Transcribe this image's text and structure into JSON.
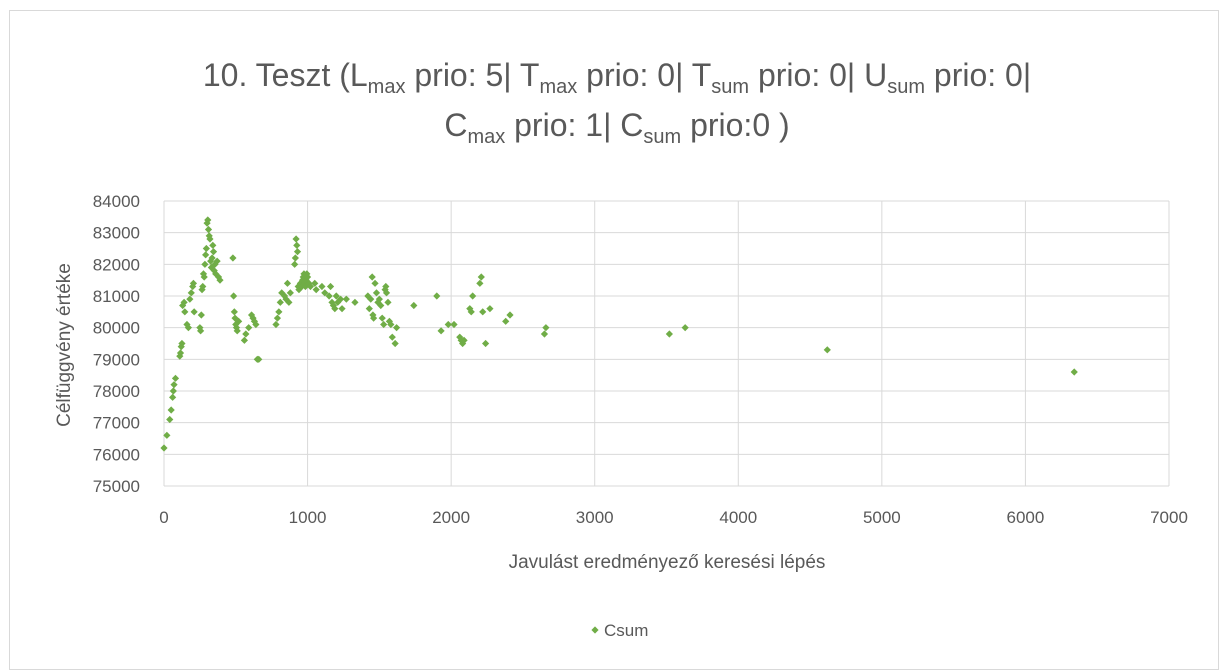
{
  "chart_data": {
    "type": "scatter",
    "title_line1": [
      {
        "t": "10. Teszt (L",
        "sub": false
      },
      {
        "t": "max",
        "sub": true
      },
      {
        "t": " prio: 5| T",
        "sub": false
      },
      {
        "t": "max",
        "sub": true
      },
      {
        "t": " prio: 0| T",
        "sub": false
      },
      {
        "t": "sum",
        "sub": true
      },
      {
        "t": " prio: 0| U",
        "sub": false
      },
      {
        "t": "sum",
        "sub": true
      },
      {
        "t": " prio: 0|",
        "sub": false
      }
    ],
    "title_line2": [
      {
        "t": "C",
        "sub": false
      },
      {
        "t": "max",
        "sub": true
      },
      {
        "t": " prio: 1| C",
        "sub": false
      },
      {
        "t": "sum",
        "sub": true
      },
      {
        "t": " prio:0 )",
        "sub": false
      }
    ],
    "xlabel": "Javulást eredményező keresési lépés",
    "ylabel": "Célfüggvény értéke",
    "xlim": [
      0,
      7000
    ],
    "ylim": [
      75000,
      84000
    ],
    "x_ticks": [
      "0",
      "1000",
      "2000",
      "3000",
      "4000",
      "5000",
      "6000",
      "7000"
    ],
    "y_ticks": [
      "75000",
      "76000",
      "77000",
      "78000",
      "79000",
      "80000",
      "81000",
      "82000",
      "83000",
      "84000"
    ],
    "grid": true,
    "legend_position": "bottom",
    "series": [
      {
        "name": "Csum",
        "color": "#70ad47",
        "marker": "diamond",
        "points": [
          [
            0,
            76200
          ],
          [
            20,
            76600
          ],
          [
            40,
            77100
          ],
          [
            50,
            77400
          ],
          [
            60,
            77800
          ],
          [
            65,
            78000
          ],
          [
            70,
            78200
          ],
          [
            80,
            78400
          ],
          [
            110,
            79100
          ],
          [
            115,
            79200
          ],
          [
            120,
            79400
          ],
          [
            125,
            79500
          ],
          [
            130,
            80700
          ],
          [
            140,
            80800
          ],
          [
            145,
            80500
          ],
          [
            160,
            80100
          ],
          [
            170,
            80000
          ],
          [
            180,
            80900
          ],
          [
            190,
            81100
          ],
          [
            200,
            81300
          ],
          [
            205,
            81400
          ],
          [
            210,
            80500
          ],
          [
            250,
            80000
          ],
          [
            255,
            79900
          ],
          [
            260,
            80400
          ],
          [
            265,
            81200
          ],
          [
            270,
            81300
          ],
          [
            275,
            81700
          ],
          [
            280,
            81600
          ],
          [
            285,
            82000
          ],
          [
            290,
            82300
          ],
          [
            295,
            82500
          ],
          [
            300,
            83300
          ],
          [
            305,
            83400
          ],
          [
            310,
            83100
          ],
          [
            315,
            82900
          ],
          [
            320,
            82800
          ],
          [
            325,
            82100
          ],
          [
            330,
            81900
          ],
          [
            335,
            82200
          ],
          [
            340,
            82600
          ],
          [
            345,
            82400
          ],
          [
            350,
            81800
          ],
          [
            355,
            82000
          ],
          [
            360,
            81700
          ],
          [
            370,
            82100
          ],
          [
            380,
            81600
          ],
          [
            390,
            81500
          ],
          [
            480,
            82200
          ],
          [
            485,
            81000
          ],
          [
            490,
            80500
          ],
          [
            495,
            80300
          ],
          [
            500,
            80100
          ],
          [
            505,
            80000
          ],
          [
            510,
            79900
          ],
          [
            520,
            80200
          ],
          [
            560,
            79600
          ],
          [
            570,
            79800
          ],
          [
            590,
            80000
          ],
          [
            610,
            80400
          ],
          [
            620,
            80300
          ],
          [
            630,
            80200
          ],
          [
            640,
            80100
          ],
          [
            650,
            79000
          ],
          [
            660,
            79000
          ],
          [
            780,
            80100
          ],
          [
            790,
            80300
          ],
          [
            800,
            80500
          ],
          [
            810,
            80800
          ],
          [
            820,
            81100
          ],
          [
            840,
            81000
          ],
          [
            850,
            80900
          ],
          [
            860,
            81400
          ],
          [
            870,
            80800
          ],
          [
            880,
            81100
          ],
          [
            910,
            82000
          ],
          [
            915,
            82200
          ],
          [
            920,
            82800
          ],
          [
            925,
            82600
          ],
          [
            930,
            82400
          ],
          [
            935,
            81300
          ],
          [
            940,
            81200
          ],
          [
            950,
            81400
          ],
          [
            960,
            81300
          ],
          [
            965,
            81500
          ],
          [
            970,
            81600
          ],
          [
            975,
            81700
          ],
          [
            980,
            81400
          ],
          [
            985,
            81300
          ],
          [
            990,
            81500
          ],
          [
            995,
            81700
          ],
          [
            1000,
            81600
          ],
          [
            1010,
            81400
          ],
          [
            1020,
            81300
          ],
          [
            1050,
            81400
          ],
          [
            1060,
            81200
          ],
          [
            1100,
            81300
          ],
          [
            1120,
            81100
          ],
          [
            1150,
            81000
          ],
          [
            1160,
            81300
          ],
          [
            1170,
            80800
          ],
          [
            1180,
            80700
          ],
          [
            1190,
            80600
          ],
          [
            1200,
            81000
          ],
          [
            1210,
            80800
          ],
          [
            1230,
            80900
          ],
          [
            1240,
            80600
          ],
          [
            1270,
            80900
          ],
          [
            1330,
            80800
          ],
          [
            1420,
            81000
          ],
          [
            1430,
            80600
          ],
          [
            1440,
            80900
          ],
          [
            1450,
            81600
          ],
          [
            1455,
            80400
          ],
          [
            1460,
            80300
          ],
          [
            1470,
            81400
          ],
          [
            1480,
            81100
          ],
          [
            1490,
            80800
          ],
          [
            1500,
            80900
          ],
          [
            1510,
            80700
          ],
          [
            1520,
            80300
          ],
          [
            1530,
            80100
          ],
          [
            1540,
            81200
          ],
          [
            1545,
            81300
          ],
          [
            1550,
            81100
          ],
          [
            1560,
            80800
          ],
          [
            1570,
            80200
          ],
          [
            1580,
            80100
          ],
          [
            1590,
            79700
          ],
          [
            1610,
            79500
          ],
          [
            1620,
            80000
          ],
          [
            1740,
            80700
          ],
          [
            1900,
            81000
          ],
          [
            1930,
            79900
          ],
          [
            1980,
            80100
          ],
          [
            2020,
            80100
          ],
          [
            2060,
            79700
          ],
          [
            2070,
            79600
          ],
          [
            2080,
            79500
          ],
          [
            2090,
            79600
          ],
          [
            2130,
            80600
          ],
          [
            2140,
            80500
          ],
          [
            2150,
            81000
          ],
          [
            2200,
            81400
          ],
          [
            2210,
            81600
          ],
          [
            2220,
            80500
          ],
          [
            2240,
            79500
          ],
          [
            2270,
            80600
          ],
          [
            2380,
            80200
          ],
          [
            2410,
            80400
          ],
          [
            2650,
            79800
          ],
          [
            2660,
            80000
          ],
          [
            3520,
            79800
          ],
          [
            3630,
            80000
          ],
          [
            4620,
            79300
          ],
          [
            6340,
            78600
          ]
        ]
      }
    ]
  }
}
